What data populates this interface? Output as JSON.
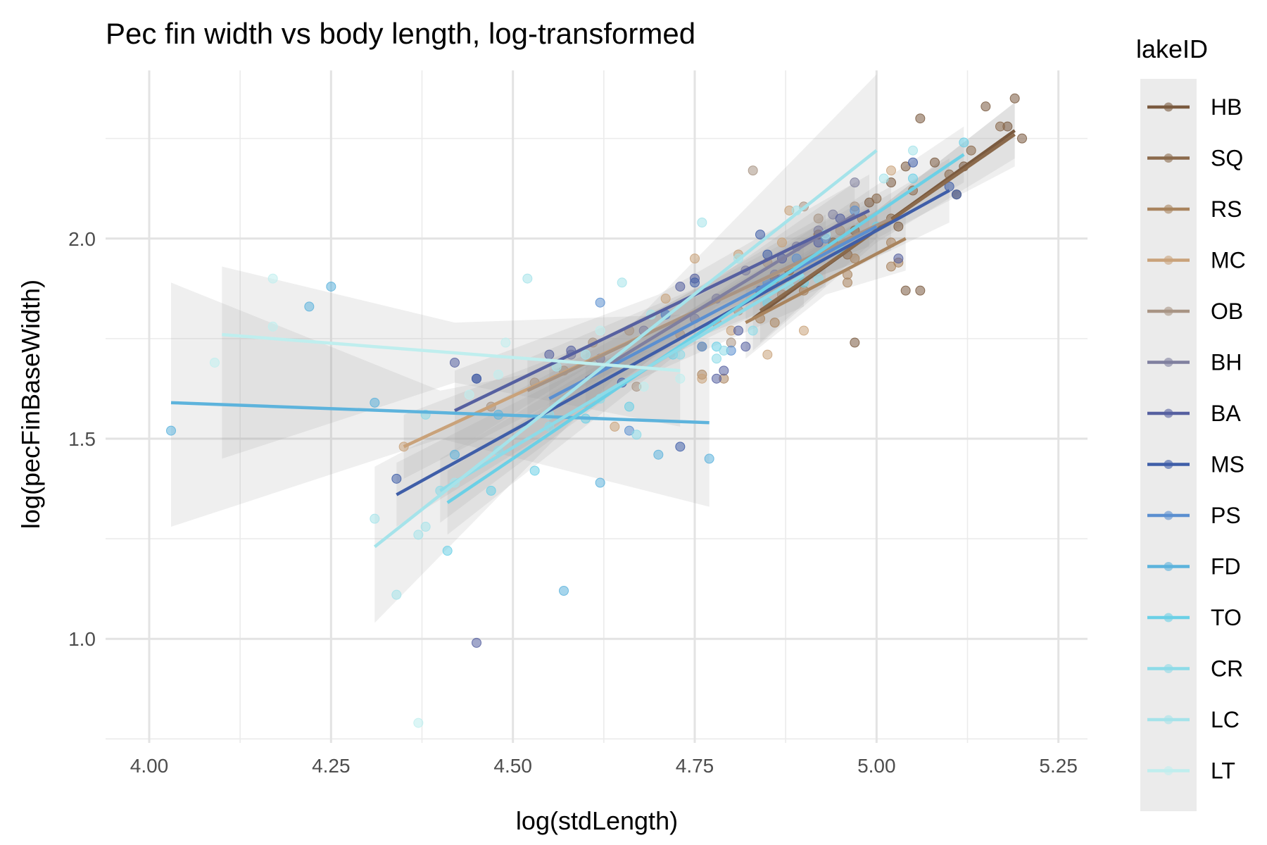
{
  "chart_data": {
    "type": "scatter",
    "title": "Pec fin width vs body length, log-transformed",
    "xlabel": "log(stdLength)",
    "ylabel": "log(pecFinBaseWidth)",
    "xlim": [
      3.94,
      5.29
    ],
    "ylim": [
      0.74,
      2.42
    ],
    "x_ticks": [
      4.0,
      4.25,
      4.5,
      4.75,
      5.0,
      5.25
    ],
    "x_tick_labels": [
      "4.00",
      "4.25",
      "4.50",
      "4.75",
      "5.00",
      "5.25"
    ],
    "y_ticks": [
      1.0,
      1.5,
      2.0
    ],
    "y_tick_labels": [
      "1.0",
      "1.5",
      "2.0"
    ],
    "grid": true,
    "legend": {
      "title": "lakeID",
      "position": "right",
      "background": "#ebebeb",
      "entries": [
        "HB",
        "SQ",
        "RS",
        "MC",
        "OB",
        "BH",
        "BA",
        "MS",
        "PS",
        "FD",
        "TO",
        "CR",
        "LC",
        "LT"
      ]
    },
    "series": [
      {
        "name": "HB",
        "color": "#7a5a3f",
        "line": [
          [
            4.83,
            1.8
          ],
          [
            5.19,
            2.27
          ]
        ],
        "band": [
          [
            4.83,
            1.72,
            1.88
          ],
          [
            5.0,
            1.99,
            2.07
          ],
          [
            5.19,
            2.2,
            2.34
          ]
        ],
        "points": [
          [
            5.06,
            2.3
          ],
          [
            5.15,
            2.33
          ],
          [
            5.18,
            2.28
          ],
          [
            5.19,
            2.35
          ],
          [
            5.2,
            2.25
          ],
          [
            5.12,
            2.18
          ],
          [
            5.08,
            2.19
          ],
          [
            5.03,
            2.03
          ],
          [
            5.04,
            1.87
          ],
          [
            5.06,
            1.87
          ],
          [
            4.97,
            1.74
          ],
          [
            5.11,
            2.11
          ],
          [
            5.04,
            2.18
          ],
          [
            5.02,
            2.14
          ],
          [
            4.99,
            2.09
          ]
        ]
      },
      {
        "name": "SQ",
        "color": "#8b6a4c",
        "line": [
          [
            4.84,
            1.82
          ],
          [
            5.19,
            2.26
          ]
        ],
        "band": [
          [
            4.84,
            1.74,
            1.9
          ],
          [
            5.0,
            2.0,
            2.07
          ],
          [
            5.19,
            2.18,
            2.34
          ]
        ],
        "points": [
          [
            5.17,
            2.28
          ],
          [
            5.13,
            2.22
          ],
          [
            5.1,
            2.16
          ],
          [
            5.05,
            2.12
          ],
          [
            5.0,
            2.1
          ],
          [
            4.97,
            2.02
          ],
          [
            4.94,
            1.99
          ],
          [
            4.92,
            2.01
          ],
          [
            4.88,
            1.92
          ],
          [
            4.86,
            1.9
          ],
          [
            4.96,
            1.96
          ],
          [
            5.02,
            2.05
          ]
        ]
      },
      {
        "name": "RS",
        "color": "#a9845e",
        "line": [
          [
            4.82,
            1.79
          ],
          [
            5.04,
            2.0
          ]
        ],
        "band": [
          [
            4.82,
            1.7,
            1.88
          ],
          [
            4.93,
            1.86,
            1.93
          ],
          [
            5.04,
            1.92,
            2.08
          ]
        ],
        "points": [
          [
            4.96,
            1.89
          ],
          [
            4.96,
            1.91
          ],
          [
            4.97,
            1.95
          ],
          [
            5.03,
            1.94
          ],
          [
            5.02,
            1.93
          ],
          [
            4.98,
            2.05
          ],
          [
            4.9,
            1.87
          ],
          [
            4.86,
            1.79
          ],
          [
            4.84,
            1.8
          ],
          [
            4.79,
            1.65
          ],
          [
            4.76,
            1.66
          ],
          [
            5.02,
            1.99
          ]
        ]
      },
      {
        "name": "MC",
        "color": "#c9a27a",
        "line": [
          [
            4.35,
            1.48
          ],
          [
            4.93,
            1.97
          ]
        ],
        "band": [
          [
            4.35,
            1.4,
            1.56
          ],
          [
            4.64,
            1.67,
            1.76
          ],
          [
            4.93,
            1.88,
            2.06
          ]
        ],
        "points": [
          [
            4.35,
            1.48
          ],
          [
            4.64,
            1.53
          ],
          [
            4.76,
            1.65
          ],
          [
            4.8,
            1.77
          ],
          [
            4.85,
            1.71
          ],
          [
            4.9,
            1.77
          ],
          [
            4.87,
            1.99
          ],
          [
            4.88,
            2.07
          ],
          [
            4.75,
            1.95
          ],
          [
            4.71,
            1.85
          ],
          [
            4.81,
            1.96
          ],
          [
            5.02,
            2.17
          ]
        ]
      },
      {
        "name": "OB",
        "color": "#a89484",
        "line": [
          [
            4.52,
            1.62
          ],
          [
            5.02,
            2.05
          ]
        ],
        "band": [
          [
            4.52,
            1.54,
            1.7
          ],
          [
            4.77,
            1.81,
            1.89
          ],
          [
            5.02,
            1.97,
            2.13
          ]
        ],
        "points": [
          [
            4.83,
            2.17
          ],
          [
            4.9,
            2.08
          ],
          [
            4.92,
            2.05
          ],
          [
            4.95,
            2.02
          ],
          [
            4.97,
            2.08
          ],
          [
            4.85,
            1.94
          ],
          [
            4.81,
            1.82
          ],
          [
            4.78,
            1.79
          ],
          [
            4.73,
            1.76
          ],
          [
            4.76,
            1.73
          ],
          [
            4.67,
            1.63
          ],
          [
            4.66,
            1.77
          ],
          [
            4.61,
            1.74
          ],
          [
            4.57,
            1.67
          ],
          [
            4.53,
            1.64
          ],
          [
            4.47,
            1.58
          ],
          [
            4.8,
            1.74
          ],
          [
            4.87,
            1.86
          ]
        ]
      },
      {
        "name": "BH",
        "color": "#7f7f9f",
        "line": [
          [
            4.6,
            1.65
          ],
          [
            4.97,
            2.06
          ]
        ],
        "band": [
          [
            4.6,
            1.57,
            1.73
          ],
          [
            4.78,
            1.83,
            1.9
          ],
          [
            4.97,
            1.98,
            2.14
          ]
        ],
        "points": [
          [
            4.97,
            2.14
          ],
          [
            4.94,
            2.06
          ],
          [
            4.92,
            2.02
          ],
          [
            4.89,
            1.98
          ],
          [
            4.86,
            1.91
          ],
          [
            4.82,
            1.92
          ],
          [
            4.78,
            1.85
          ],
          [
            4.75,
            1.8
          ],
          [
            4.71,
            1.81
          ],
          [
            4.68,
            1.77
          ],
          [
            4.62,
            1.7
          ],
          [
            4.58,
            1.71
          ]
        ]
      },
      {
        "name": "BA",
        "color": "#5660a0",
        "line": [
          [
            4.42,
            1.57
          ],
          [
            4.99,
            2.07
          ]
        ],
        "band": [
          [
            4.42,
            1.47,
            1.67
          ],
          [
            4.7,
            1.79,
            1.86
          ],
          [
            4.99,
            1.98,
            2.16
          ]
        ],
        "points": [
          [
            4.42,
            1.69
          ],
          [
            4.45,
            1.65
          ],
          [
            4.55,
            1.71
          ],
          [
            4.58,
            1.72
          ],
          [
            4.73,
            1.88
          ],
          [
            4.75,
            1.9
          ],
          [
            4.79,
            1.67
          ],
          [
            4.78,
            1.65
          ],
          [
            4.81,
            1.77
          ],
          [
            4.82,
            1.73
          ],
          [
            4.84,
            1.87
          ],
          [
            4.87,
            1.95
          ],
          [
            4.92,
            1.99
          ],
          [
            4.95,
            2.05
          ],
          [
            5.03,
            1.95
          ],
          [
            4.45,
            0.99
          ]
        ]
      },
      {
        "name": "MS",
        "color": "#3f5ea8",
        "line": [
          [
            4.34,
            1.36
          ],
          [
            5.1,
            2.12
          ]
        ],
        "band": [
          [
            4.34,
            1.28,
            1.44
          ],
          [
            4.72,
            1.71,
            1.79
          ],
          [
            5.1,
            2.04,
            2.2
          ]
        ],
        "points": [
          [
            4.34,
            1.4
          ],
          [
            4.45,
            1.65
          ],
          [
            4.65,
            1.64
          ],
          [
            4.73,
            1.48
          ],
          [
            4.75,
            1.89
          ],
          [
            4.84,
            2.01
          ],
          [
            4.85,
            1.96
          ],
          [
            5.05,
            2.19
          ],
          [
            5.1,
            2.13
          ],
          [
            5.11,
            2.11
          ]
        ]
      },
      {
        "name": "PS",
        "color": "#5b8fd0",
        "line": [
          [
            4.55,
            1.6
          ],
          [
            5.0,
            2.03
          ]
        ],
        "band": [
          [
            4.55,
            1.52,
            1.68
          ],
          [
            4.77,
            1.8,
            1.87
          ],
          [
            5.0,
            1.96,
            2.1
          ]
        ],
        "points": [
          [
            4.62,
            1.84
          ],
          [
            4.66,
            1.52
          ],
          [
            4.71,
            1.81
          ],
          [
            4.76,
            1.73
          ],
          [
            4.8,
            1.72
          ],
          [
            4.85,
            1.89
          ],
          [
            4.89,
            1.95
          ],
          [
            4.93,
            2.0
          ],
          [
            4.97,
            2.07
          ]
        ]
      },
      {
        "name": "FD",
        "color": "#5db3dc",
        "line": [
          [
            4.03,
            1.59
          ],
          [
            4.77,
            1.54
          ]
        ],
        "band": [
          [
            4.03,
            1.28,
            1.89
          ],
          [
            4.4,
            1.5,
            1.62
          ],
          [
            4.77,
            1.33,
            1.75
          ]
        ],
        "points": [
          [
            4.03,
            1.52
          ],
          [
            4.22,
            1.83
          ],
          [
            4.25,
            1.88
          ],
          [
            4.31,
            1.59
          ],
          [
            4.42,
            1.46
          ],
          [
            4.48,
            1.56
          ],
          [
            4.62,
            1.39
          ],
          [
            4.7,
            1.46
          ],
          [
            4.77,
            1.45
          ],
          [
            4.57,
            1.12
          ]
        ]
      },
      {
        "name": "TO",
        "color": "#6bd0e6",
        "line": [
          [
            4.41,
            1.34
          ],
          [
            5.12,
            2.21
          ]
        ],
        "band": [
          [
            4.41,
            1.26,
            1.42
          ],
          [
            4.76,
            1.76,
            1.84
          ],
          [
            5.12,
            2.14,
            2.28
          ]
        ],
        "points": [
          [
            4.41,
            1.22
          ],
          [
            4.47,
            1.37
          ],
          [
            4.53,
            1.42
          ],
          [
            4.6,
            1.55
          ],
          [
            4.66,
            1.58
          ],
          [
            4.72,
            1.71
          ],
          [
            4.78,
            1.73
          ],
          [
            4.85,
            1.84
          ],
          [
            4.9,
            1.89
          ],
          [
            4.95,
            1.97
          ],
          [
            5.0,
            2.03
          ],
          [
            5.05,
            2.15
          ],
          [
            5.12,
            2.24
          ]
        ]
      },
      {
        "name": "CR",
        "color": "#8ddbe8",
        "line": [
          [
            4.4,
            1.37
          ],
          [
            4.9,
            1.91
          ]
        ],
        "band": [
          [
            4.4,
            1.29,
            1.45
          ],
          [
            4.65,
            1.63,
            1.72
          ],
          [
            4.9,
            1.83,
            1.99
          ]
        ],
        "points": [
          [
            4.38,
            1.56
          ],
          [
            4.4,
            1.37
          ],
          [
            4.48,
            1.47
          ],
          [
            4.55,
            1.56
          ],
          [
            4.62,
            1.6
          ],
          [
            4.67,
            1.51
          ],
          [
            4.73,
            1.71
          ],
          [
            4.78,
            1.7
          ],
          [
            4.83,
            1.77
          ],
          [
            4.88,
            1.88
          ],
          [
            4.92,
            1.9
          ],
          [
            4.79,
            1.72
          ],
          [
            4.55,
            1.53
          ]
        ]
      },
      {
        "name": "LC",
        "color": "#a5e3ea",
        "line": [
          [
            4.31,
            1.23
          ],
          [
            5.0,
            2.22
          ]
        ],
        "band": [
          [
            4.31,
            1.04,
            1.43
          ],
          [
            4.65,
            1.67,
            1.76
          ],
          [
            5.0,
            2.02,
            2.41
          ]
        ],
        "points": [
          [
            4.31,
            1.3
          ],
          [
            4.34,
            1.11
          ],
          [
            4.37,
            1.26
          ],
          [
            4.38,
            1.28
          ],
          [
            4.42,
            1.39
          ],
          [
            4.52,
            1.9
          ],
          [
            4.56,
            1.68
          ],
          [
            4.6,
            1.71
          ],
          [
            4.65,
            1.89
          ],
          [
            4.69,
            1.81
          ],
          [
            4.76,
            2.04
          ],
          [
            4.81,
            1.95
          ],
          [
            4.89,
            2.07
          ],
          [
            4.93,
            2.01
          ],
          [
            5.01,
            2.15
          ],
          [
            5.05,
            2.22
          ]
        ]
      },
      {
        "name": "LT",
        "color": "#bfeeee",
        "line": [
          [
            4.1,
            1.76
          ],
          [
            4.73,
            1.67
          ]
        ],
        "band": [
          [
            4.1,
            1.45,
            1.93
          ],
          [
            4.42,
            1.64,
            1.79
          ],
          [
            4.73,
            1.53,
            1.81
          ]
        ],
        "points": [
          [
            4.09,
            1.69
          ],
          [
            4.17,
            1.9
          ],
          [
            4.17,
            1.78
          ],
          [
            4.37,
            0.79
          ],
          [
            4.44,
            1.61
          ],
          [
            4.49,
            1.74
          ],
          [
            4.48,
            1.66
          ],
          [
            4.62,
            1.77
          ],
          [
            4.68,
            1.63
          ],
          [
            4.73,
            1.65
          ]
        ]
      }
    ]
  }
}
